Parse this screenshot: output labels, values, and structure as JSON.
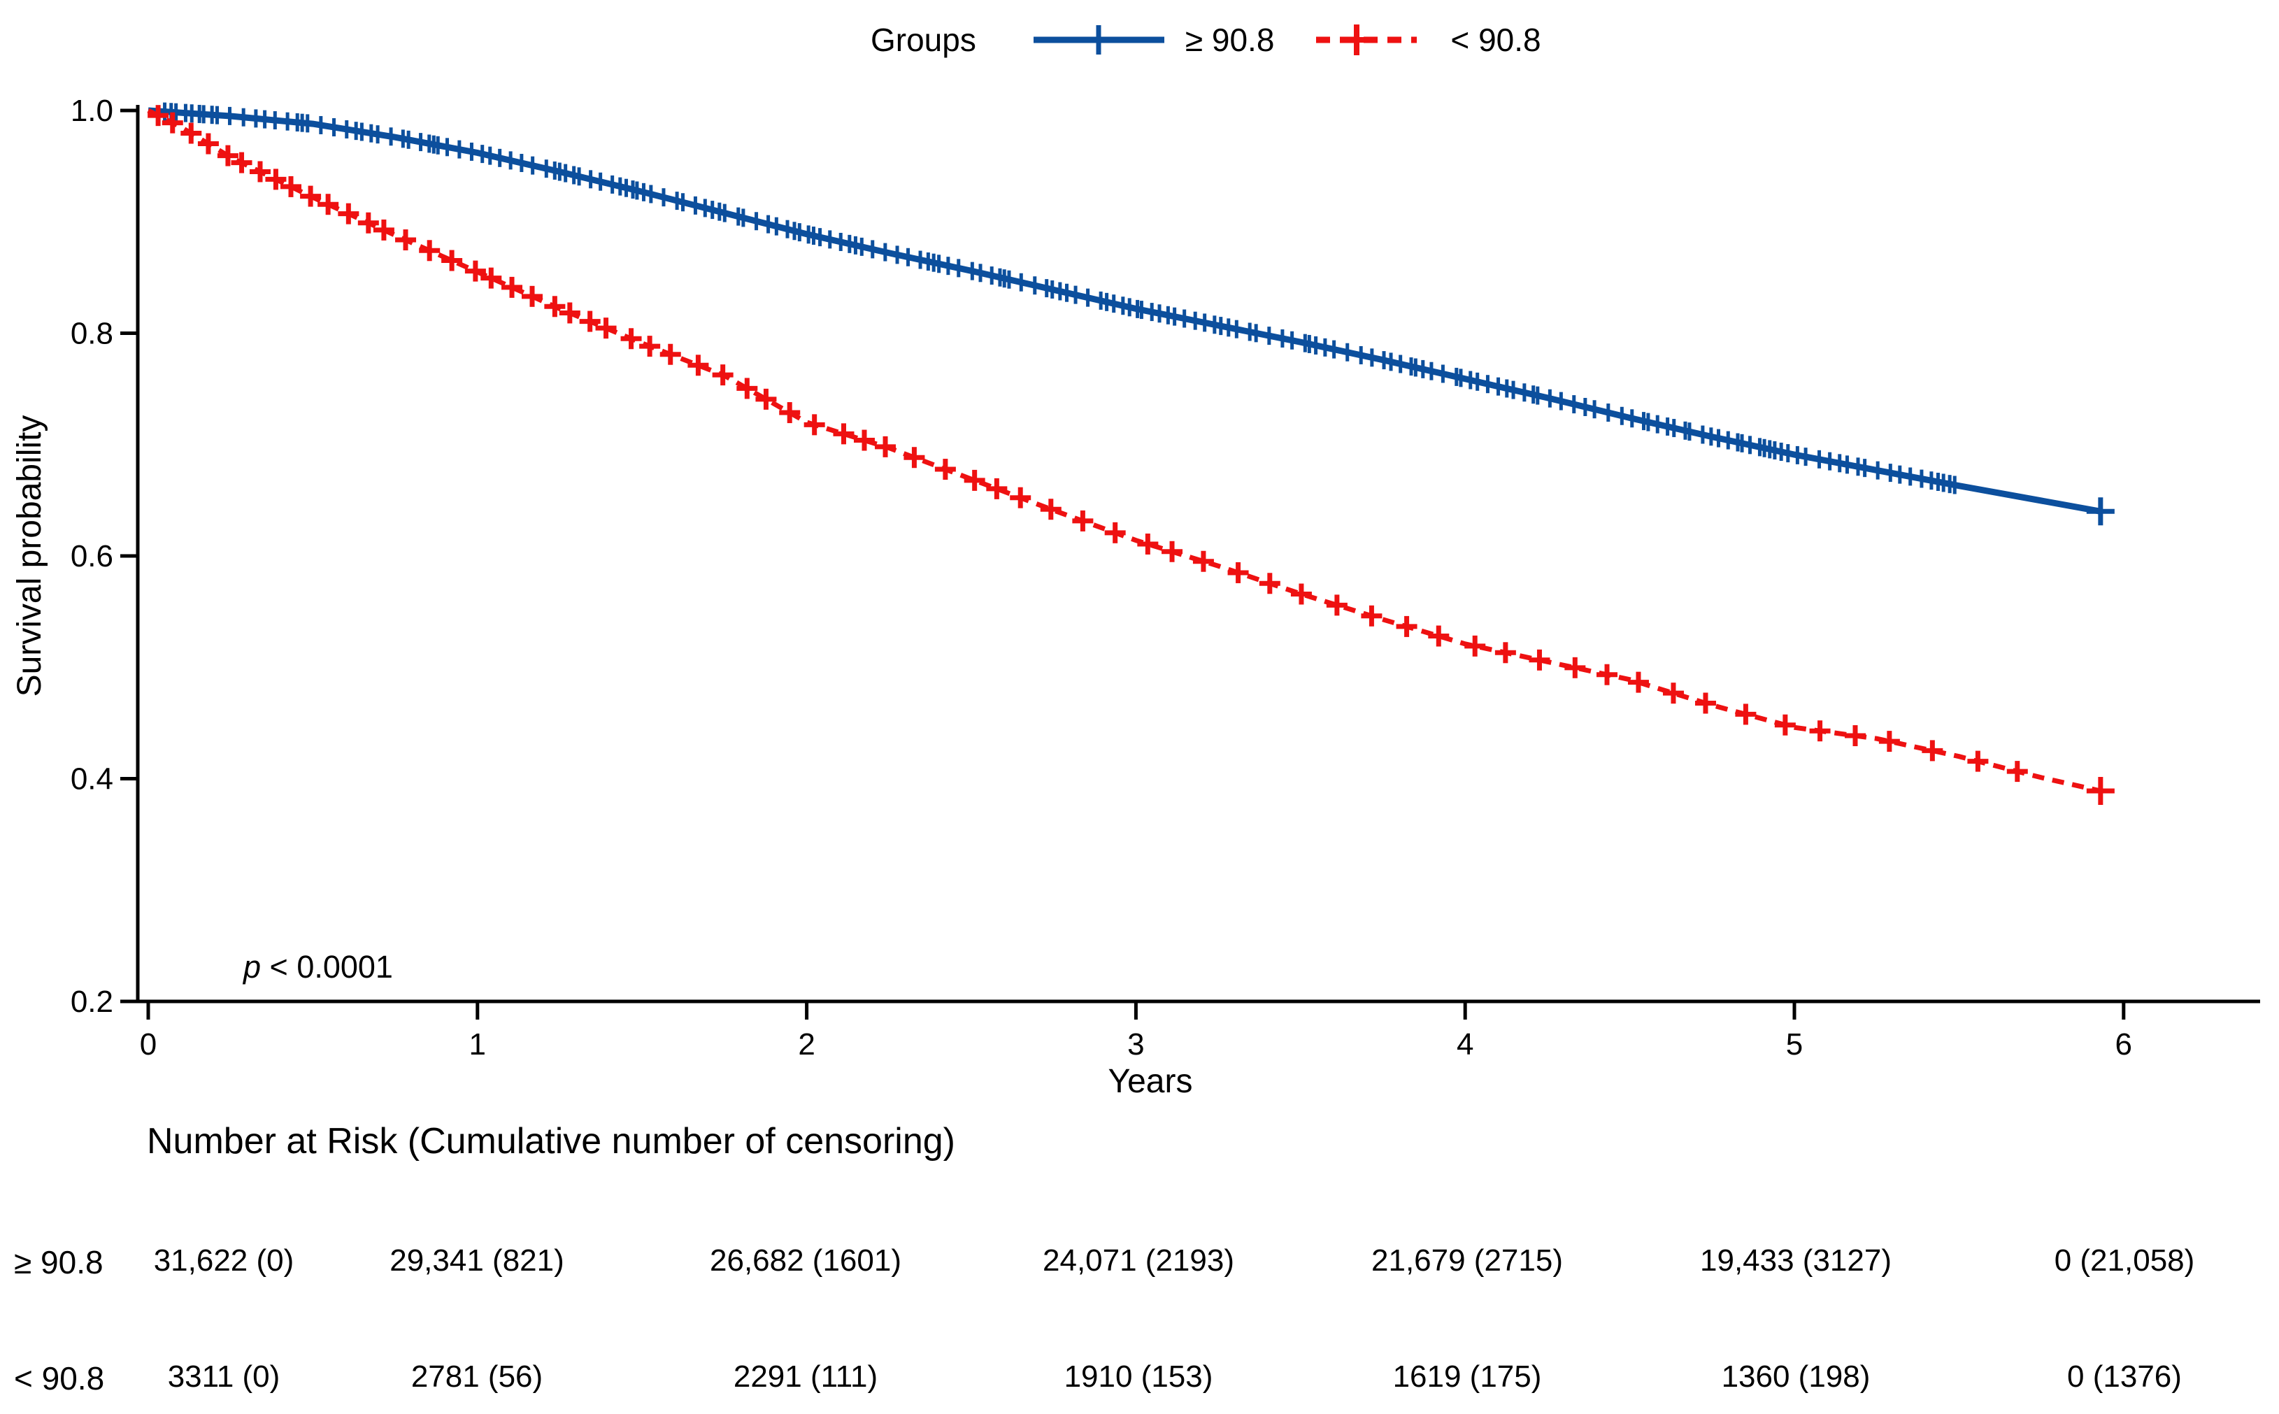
{
  "legend": {
    "title": "Groups"
  },
  "chart_data": {
    "type": "line",
    "title": "",
    "xlabel": "Years",
    "ylabel": "Survival probability",
    "xlim": [
      0,
      6.45
    ],
    "ylim": [
      0.2,
      1.0
    ],
    "x_ticks": [
      "0",
      "1",
      "2",
      "3",
      "4",
      "5",
      "6"
    ],
    "y_ticks": [
      "1.0",
      "0.8",
      "0.6",
      "0.4",
      "0.2"
    ],
    "grid": false,
    "legend_position": "top-center",
    "annotation": "p < 0.0001",
    "axis_color": "#000000",
    "series": [
      {
        "name": "≥ 90.8",
        "color": "#0c4f9d",
        "style": "solid",
        "marker": "plus-censor",
        "points": [
          [
            0,
            1.0
          ],
          [
            0.25,
            0.995
          ],
          [
            0.5,
            0.988
          ],
          [
            0.75,
            0.976
          ],
          [
            1,
            0.962
          ],
          [
            1.25,
            0.945
          ],
          [
            1.5,
            0.927
          ],
          [
            1.75,
            0.908
          ],
          [
            2,
            0.889
          ],
          [
            2.25,
            0.872
          ],
          [
            2.5,
            0.856
          ],
          [
            2.75,
            0.839
          ],
          [
            3,
            0.822
          ],
          [
            3.25,
            0.807
          ],
          [
            3.5,
            0.792
          ],
          [
            3.75,
            0.776
          ],
          [
            4,
            0.759
          ],
          [
            4.25,
            0.742
          ],
          [
            4.5,
            0.724
          ],
          [
            4.75,
            0.707
          ],
          [
            5,
            0.691
          ],
          [
            5.25,
            0.677
          ],
          [
            5.5,
            0.663
          ],
          [
            5.93,
            0.64
          ]
        ],
        "censor_range": [
          0.05,
          5.5
        ],
        "end_point": [
          5.93,
          0.64
        ]
      },
      {
        "name": "< 90.8",
        "color": "#ee1111",
        "style": "dashed",
        "marker": "plus-censor",
        "points": [
          [
            0,
            1.0
          ],
          [
            0.1,
            0.985
          ],
          [
            0.25,
            0.958
          ],
          [
            0.5,
            0.922
          ],
          [
            0.75,
            0.888
          ],
          [
            1,
            0.855
          ],
          [
            1.25,
            0.822
          ],
          [
            1.5,
            0.791
          ],
          [
            1.75,
            0.762
          ],
          [
            2,
            0.72
          ],
          [
            2.25,
            0.697
          ],
          [
            2.5,
            0.669
          ],
          [
            2.75,
            0.641
          ],
          [
            3,
            0.614
          ],
          [
            3.25,
            0.591
          ],
          [
            3.5,
            0.566
          ],
          [
            3.75,
            0.543
          ],
          [
            4,
            0.521
          ],
          [
            4.25,
            0.505
          ],
          [
            4.5,
            0.489
          ],
          [
            4.75,
            0.466
          ],
          [
            5,
            0.446
          ],
          [
            5.25,
            0.436
          ],
          [
            5.5,
            0.42
          ],
          [
            5.75,
            0.401
          ],
          [
            5.93,
            0.389
          ]
        ],
        "censor_range": [
          0.03,
          5.78
        ],
        "end_point": [
          5.93,
          0.389
        ]
      }
    ],
    "risk_table": {
      "title": "Number at Risk (Cumulative number of censoring)",
      "rows": [
        {
          "label": "≥ 90.8",
          "values": [
            "31,622 (0)",
            "29,341 (821)",
            "26,682 (1601)",
            "24,071 (2193)",
            "21,679 (2715)",
            "19,433 (3127)",
            "0 (21,058)"
          ]
        },
        {
          "label": "< 90.8",
          "values": [
            "3311 (0)",
            "2781 (56)",
            "2291 (111)",
            "1910 (153)",
            "1619 (175)",
            "1360 (198)",
            "0 (1376)"
          ]
        }
      ]
    }
  }
}
